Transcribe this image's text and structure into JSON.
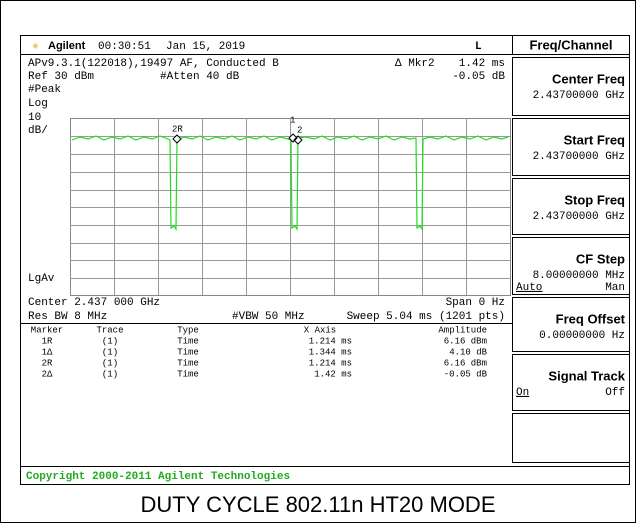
{
  "header": {
    "brand": "Agilent",
    "time": "00:30:51",
    "date": "Jan 15, 2019",
    "indicator": "L"
  },
  "status": {
    "line1": "APv9.3.1(122018),19497 AF, Conducted B",
    "ref": "Ref 30 dBm",
    "atten": "#Atten 40 dB",
    "marker": "Δ Mkr2",
    "marker_x": "1.42 ms",
    "marker_y": "-0.05 dB"
  },
  "left_labels": [
    "#Peak",
    "Log",
    "10",
    "dB/",
    "LgAv"
  ],
  "trace_markers": [
    "2R",
    "1",
    "2"
  ],
  "footer": {
    "center": "Center 2.437 000 GHz",
    "span": "Span 0 Hz",
    "res_bw": "Res BW 8 MHz",
    "vbw": "#VBW 50 MHz",
    "sweep": "Sweep 5.04 ms (1201 pts)"
  },
  "marker_table": {
    "columns": [
      "Marker",
      "Trace",
      "Type",
      "X Axis",
      "Amplitude"
    ],
    "rows": [
      [
        "1R",
        "(1)",
        "Time",
        "1.214 ms",
        "6.16 dBm"
      ],
      [
        "1Δ",
        "(1)",
        "Time",
        "1.344 ms",
        "4.10 dB"
      ],
      [
        "2R",
        "(1)",
        "Time",
        "1.214 ms",
        "6.16 dBm"
      ],
      [
        "2Δ",
        "(1)",
        "Time",
        "1.42 ms",
        "-0.05 dB"
      ]
    ]
  },
  "softkeys": {
    "title": "Freq/Channel",
    "keys": [
      {
        "label": "Center Freq",
        "value": "2.43700000 GHz"
      },
      {
        "label": "Start Freq",
        "value": "2.43700000 GHz"
      },
      {
        "label": "Stop Freq",
        "value": "2.43700000 GHz"
      },
      {
        "label": "CF Step",
        "value": "8.00000000 MHz",
        "options": [
          "Auto",
          "Man"
        ]
      },
      {
        "label": "Freq Offset",
        "value": "0.00000000  Hz"
      },
      {
        "label": "Signal Track",
        "options": [
          "On",
          "Off"
        ]
      }
    ]
  },
  "copyright": "Copyright 2000-2011 Agilent Technologies",
  "caption": "DUTY CYCLE 802.11n HT20 MODE"
}
